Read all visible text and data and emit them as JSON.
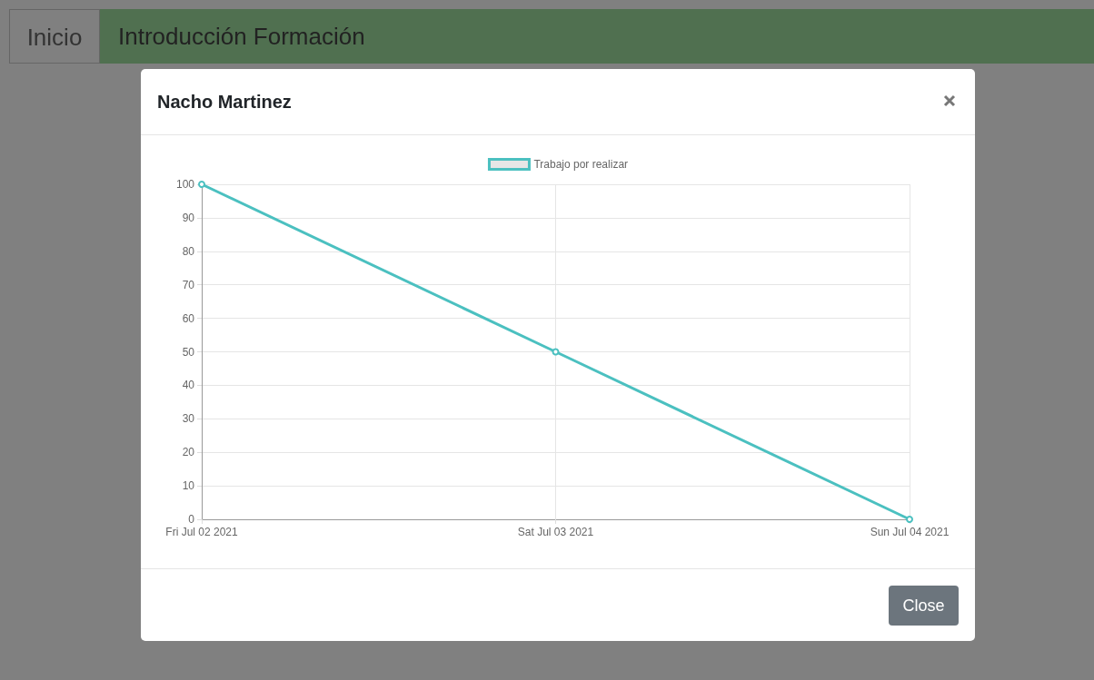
{
  "chart_data": {
    "type": "line",
    "title": "Nacho Martinez",
    "annotations": [
      "Inicio",
      "Introducción Formación",
      "Close"
    ],
    "x": [
      "2021-07-02",
      "2021-07-03",
      "2021-07-04"
    ],
    "series": [
      {
        "name": "Trabajo por realizar",
        "color": "#4bc0c0",
        "values": [
          100,
          50,
          0
        ]
      }
    ],
    "xlim": [
      "2021-07-02",
      "2021-07-04"
    ],
    "xticks": [
      {
        "value": "2021-07-02",
        "label": "Fri Jul 02 2021"
      },
      {
        "value": "2021-07-03",
        "label": "Sat Jul 03 2021"
      },
      {
        "value": "2021-07-04",
        "label": "Sun Jul 04 2021"
      }
    ],
    "ylim": [
      0,
      100
    ],
    "yticks": [
      0,
      10,
      20,
      30,
      40,
      50,
      60,
      70,
      80,
      90,
      100
    ],
    "grid": true,
    "legend": "top",
    "marker": "circle",
    "line_style": "solid"
  }
}
